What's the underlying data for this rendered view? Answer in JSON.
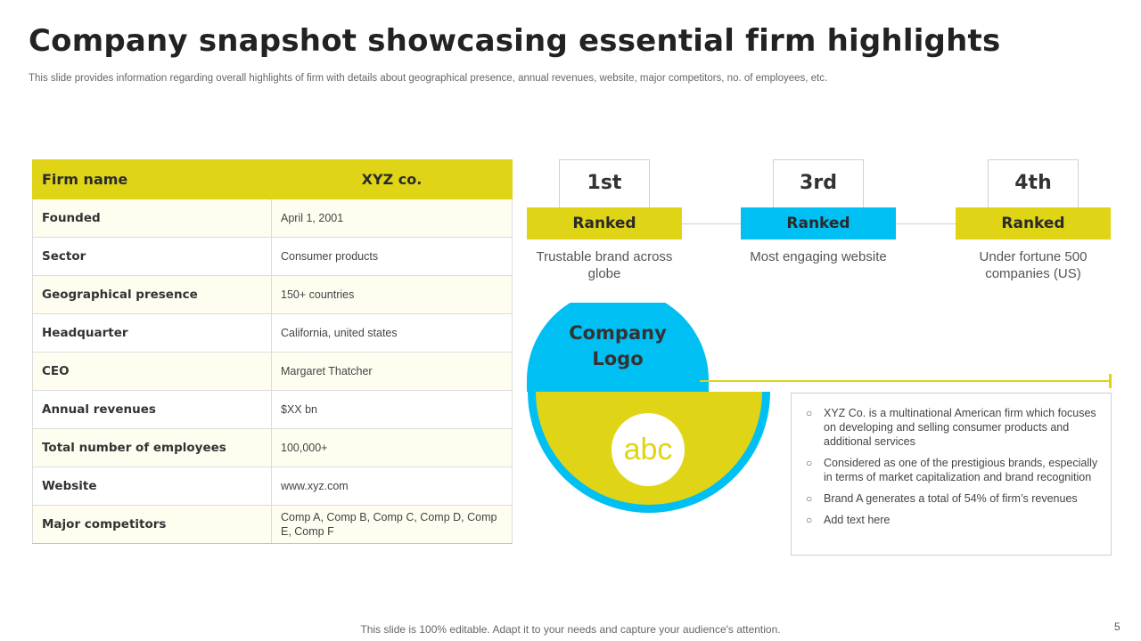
{
  "slide": {
    "title": "Company snapshot showcasing essential firm highlights",
    "subtitle": "This slide provides information regarding overall highlights of firm with details about geographical presence, annual revenues, website, major competitors, no. of employees, etc.",
    "footer": "This slide is 100% editable. Adapt it to your needs and capture your audience's attention.",
    "page_number": "5"
  },
  "table": {
    "header": {
      "key": "Firm name",
      "value": "XYZ co."
    },
    "rows": [
      {
        "key": "Founded",
        "value": "April 1, 2001"
      },
      {
        "key": "Sector",
        "value": "Consumer  products"
      },
      {
        "key": "Geographical presence",
        "value": "150+ countries"
      },
      {
        "key": "Headquarter",
        "value": "California,  united states"
      },
      {
        "key": "CEO",
        "value": "Margaret  Thatcher"
      },
      {
        "key": "Annual revenues",
        "value": "$XX  bn"
      },
      {
        "key": "Total number of employees",
        "value": "100,000+"
      },
      {
        "key": "Website",
        "value": "www.xyz.com"
      },
      {
        "key": "Major competitors",
        "value": "Comp A, Comp B, Comp C, Comp D, Comp E, Comp F"
      }
    ]
  },
  "rankings": [
    {
      "position": "1st",
      "label": "Ranked",
      "description": "Trustable brand across globe",
      "color": "#dfd416"
    },
    {
      "position": "3rd",
      "label": "Ranked",
      "description": "Most engaging website",
      "color": "#00bff3"
    },
    {
      "position": "4th",
      "label": "Ranked",
      "description": "Under fortune 500 companies (US)",
      "color": "#dfd416"
    }
  ],
  "logo": {
    "title": "Company Logo",
    "placeholder": "abc",
    "colors": {
      "blue": "#00bff3",
      "yellow": "#dfd416"
    }
  },
  "details": [
    "XYZ Co. is a multinational American firm which focuses on developing  and selling consumer products and additional services",
    "Considered  as one of the prestigious brands, especially in terms of market capitalization and brand recognition",
    "Brand A generates  a total of 54% of firm’s revenues",
    "Add text here"
  ]
}
